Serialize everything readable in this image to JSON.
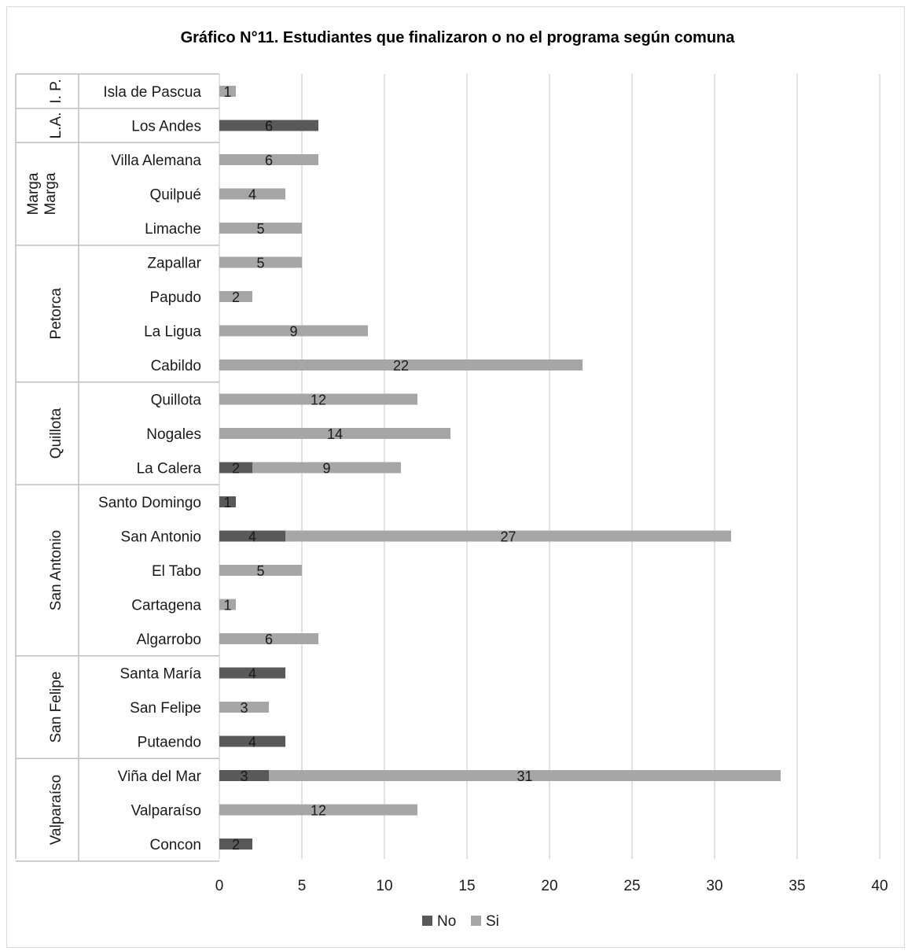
{
  "chart_data": {
    "type": "bar",
    "orientation": "horizontal",
    "stacked": true,
    "title": "Gráfico N°11. Estudiantes que finalizaron o no el programa según comuna",
    "xlabel": "",
    "ylabel": "",
    "xlim": [
      0,
      40
    ],
    "x_ticks": [
      "0",
      "5",
      "10",
      "15",
      "20",
      "25",
      "30",
      "35",
      "40"
    ],
    "grid": true,
    "legend_position": "bottom",
    "colors": {
      "No": "#595959",
      "Si": "#a6a6a6"
    },
    "groups": [
      {
        "name": "I. P.",
        "rows": [
          {
            "category": "Isla de Pascua",
            "No": null,
            "Si": 1
          }
        ]
      },
      {
        "name": "L.A.",
        "rows": [
          {
            "category": "Los Andes",
            "No": 6,
            "Si": null
          }
        ]
      },
      {
        "name": "Marga Marga",
        "rows": [
          {
            "category": "Villa Alemana",
            "No": null,
            "Si": 6
          },
          {
            "category": "Quilpué",
            "No": null,
            "Si": 4
          },
          {
            "category": "Limache",
            "No": null,
            "Si": 5
          }
        ]
      },
      {
        "name": "Petorca",
        "rows": [
          {
            "category": "Zapallar",
            "No": null,
            "Si": 5
          },
          {
            "category": "Papudo",
            "No": null,
            "Si": 2
          },
          {
            "category": "La Ligua",
            "No": null,
            "Si": 9
          },
          {
            "category": "Cabildo",
            "No": null,
            "Si": 22
          }
        ]
      },
      {
        "name": "Quillota",
        "rows": [
          {
            "category": "Quillota",
            "No": null,
            "Si": 12
          },
          {
            "category": "Nogales",
            "No": null,
            "Si": 14
          },
          {
            "category": "La Calera",
            "No": 2,
            "Si": 9
          }
        ]
      },
      {
        "name": "San Antonio",
        "rows": [
          {
            "category": "Santo Domingo",
            "No": 1,
            "Si": null
          },
          {
            "category": "San Antonio",
            "No": 4,
            "Si": 27
          },
          {
            "category": "El Tabo",
            "No": null,
            "Si": 5
          },
          {
            "category": "Cartagena",
            "No": null,
            "Si": 1
          },
          {
            "category": "Algarrobo",
            "No": null,
            "Si": 6
          }
        ]
      },
      {
        "name": "San Felipe",
        "rows": [
          {
            "category": "Santa María",
            "No": 4,
            "Si": null
          },
          {
            "category": "San Felipe",
            "No": null,
            "Si": 3
          },
          {
            "category": "Putaendo",
            "No": 4,
            "Si": null
          }
        ]
      },
      {
        "name": "Valparaíso",
        "rows": [
          {
            "category": "Viña del Mar",
            "No": 3,
            "Si": 31
          },
          {
            "category": "Valparaíso",
            "No": null,
            "Si": 12
          },
          {
            "category": "Concon",
            "No": 2,
            "Si": null
          }
        ]
      }
    ],
    "series": [
      {
        "name": "No"
      },
      {
        "name": "Si"
      }
    ]
  }
}
